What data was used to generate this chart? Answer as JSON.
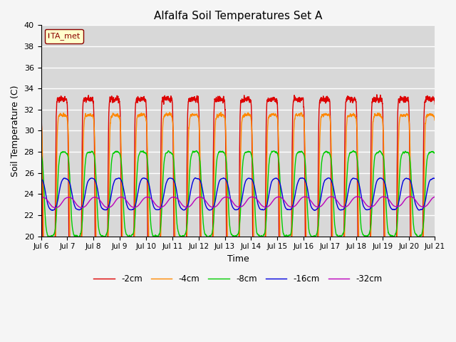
{
  "title": "Alfalfa Soil Temperatures Set A",
  "xlabel": "Time",
  "ylabel": "Soil Temperature (C)",
  "ylim": [
    20,
    40
  ],
  "plot_bg": "#d8d8d8",
  "fig_bg": "#f5f5f5",
  "legend_box_label": "TA_met",
  "colors": {
    "-2cm": "#dd0000",
    "-4cm": "#ff8800",
    "-8cm": "#00cc00",
    "-16cm": "#0000dd",
    "-32cm": "#bb00bb"
  },
  "xtick_labels": [
    "Jul 6",
    "Jul 7",
    "Jul 8",
    "Jul 9",
    "Jul 10",
    "Jul 11",
    "Jul 12",
    "Jul 13",
    "Jul 14",
    "Jul 15",
    "Jul 16",
    "Jul 17",
    "Jul 18",
    "Jul 19",
    "Jul 20",
    "Jul 21"
  ],
  "n_days": 15,
  "ppd": 240,
  "s2_base": 23.5,
  "s2_amp": 9.5,
  "s2_phase": 0.55,
  "s2_skew": 6.0,
  "s4_base": 23.5,
  "s4_amp": 8.0,
  "s4_phase": 0.58,
  "s4_skew": 4.0,
  "s8_base": 24.0,
  "s8_amp": 4.0,
  "s8_phase": 0.62,
  "s8_skew": 2.5,
  "s16_base": 24.0,
  "s16_amp": 1.5,
  "s16_phase": 0.68,
  "s16_skew": 1.5,
  "s32_base": 23.2,
  "s32_amp": 0.5,
  "s32_phase": 0.8,
  "s32_skew": 1.0,
  "s32_trend": 0.08
}
